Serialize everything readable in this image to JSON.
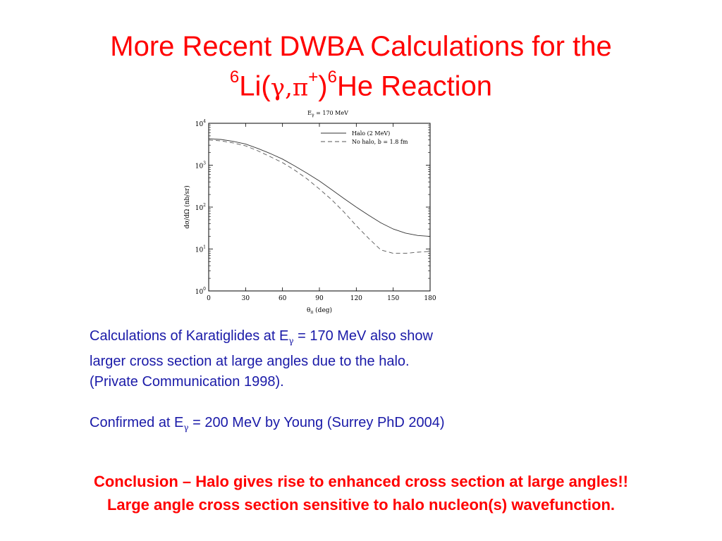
{
  "title": {
    "line1": "More Recent DWBA Calculations for the",
    "mass_li": "6",
    "li": "Li(",
    "gamma": "γ",
    "comma": ",",
    "pi": "π",
    "plus": "+",
    "close": ")",
    "mass_he": "6",
    "he_reaction": "He Reaction"
  },
  "chart_data": {
    "type": "line",
    "title": "E_γ = 170 MeV",
    "xlabel": "θ_π (deg)",
    "ylabel": "dσ/dΩ (nb/sr)",
    "xlim": [
      0,
      180
    ],
    "ylim": [
      1,
      10000
    ],
    "yscale": "log",
    "xticks": [
      0,
      30,
      60,
      90,
      120,
      150,
      180
    ],
    "yticks": [
      1,
      10,
      100,
      1000,
      10000
    ],
    "grid": false,
    "legend_position": "top-right",
    "x": [
      0,
      10,
      20,
      30,
      40,
      50,
      60,
      70,
      80,
      90,
      100,
      110,
      120,
      130,
      140,
      150,
      160,
      170,
      180
    ],
    "series": [
      {
        "name": "Halo (2 MeV)",
        "style": "solid",
        "values": [
          4300,
          4100,
          3700,
          3200,
          2500,
          1900,
          1400,
          960,
          640,
          420,
          260,
          160,
          100,
          64,
          42,
          30,
          24,
          21,
          20
        ]
      },
      {
        "name": "No halo, b = 1.8 fm",
        "style": "dashed",
        "values": [
          4000,
          3800,
          3400,
          2900,
          2200,
          1600,
          1150,
          760,
          470,
          270,
          150,
          76,
          36,
          18,
          9.5,
          7.9,
          7.9,
          8.4,
          8.8
        ]
      }
    ]
  },
  "plot_text": {
    "title_main": "E",
    "title_sub": "γ",
    "title_rest": " = 170 MeV",
    "xlabel_main": "θ",
    "xlabel_sub": "π",
    "xlabel_rest": " (deg)"
  },
  "body": {
    "p1_a": "Calculations of Karatiglides at E",
    "p1_sub": "γ",
    "p1_b": " = 170 MeV  also show",
    "p1_line2": "larger cross section at large angles due to the halo.",
    "p1_line3": "(Private Communication 1998).",
    "p2_a": "Confirmed at E",
    "p2_sub": "γ",
    "p2_b": " = 200 MeV by Young (Surrey PhD 2004)"
  },
  "conclusion": {
    "line1": "Conclusion – Halo gives rise to enhanced cross section at large angles!!",
    "line2": "Large angle cross section sensitive to halo nucleon(s) wavefunction."
  },
  "colors": {
    "title": "#ff0000",
    "body_text": "#1a1aa8",
    "conclusion": "#ff0000"
  }
}
